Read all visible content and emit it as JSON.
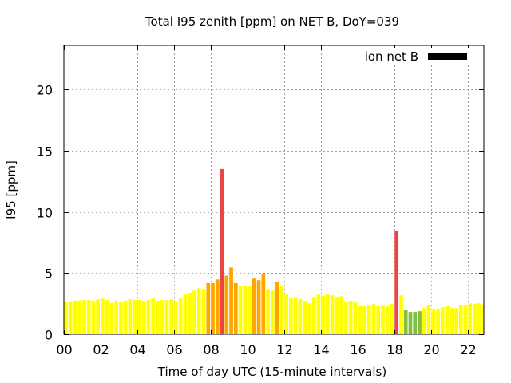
{
  "chart_data": {
    "type": "bar",
    "title": "Total I95 zenith [ppm] on NET B, DoY=039",
    "xlabel": "Time of day UTC (15-minute intervals)",
    "ylabel": "I95 [ppm]",
    "xlim": [
      0,
      22.85
    ],
    "ylim": [
      0,
      23.6
    ],
    "grid": true,
    "bin_hours": 0.25,
    "x_ticks": [
      0,
      2,
      4,
      6,
      8,
      10,
      12,
      14,
      16,
      18,
      20,
      22
    ],
    "x_tick_labels": [
      "00",
      "02",
      "04",
      "06",
      "08",
      "10",
      "12",
      "14",
      "16",
      "18",
      "20",
      "22"
    ],
    "y_ticks": [
      0,
      5,
      10,
      15,
      20
    ],
    "y_tick_labels": [
      "0",
      "5",
      "10",
      "15",
      "20"
    ],
    "legend": {
      "position": "top-right",
      "entries": [
        {
          "label": "ion net B",
          "color": "#000000"
        }
      ]
    },
    "colors": {
      "Y": "#ffff00",
      "O": "#ffa500",
      "R": "#ee4444",
      "G": "#80c040"
    },
    "values": [
      2.63,
      2.7,
      2.75,
      2.75,
      2.8,
      2.8,
      2.73,
      2.86,
      2.92,
      2.8,
      2.55,
      2.73,
      2.66,
      2.73,
      2.86,
      2.8,
      2.81,
      2.73,
      2.8,
      2.92,
      2.73,
      2.8,
      2.8,
      2.86,
      2.66,
      2.92,
      3.25,
      3.38,
      3.57,
      3.77,
      3.7,
      4.18,
      4.18,
      4.48,
      13.5,
      4.8,
      5.45,
      4.18,
      3.96,
      3.96,
      3.9,
      4.55,
      4.42,
      4.96,
      3.7,
      3.57,
      4.28,
      3.96,
      3.25,
      2.99,
      3.05,
      2.88,
      2.73,
      2.53,
      3.05,
      3.25,
      3.12,
      3.31,
      3.18,
      3.05,
      3.12,
      2.66,
      2.73,
      2.6,
      2.34,
      2.34,
      2.4,
      2.47,
      2.34,
      2.4,
      2.34,
      2.47,
      8.44,
      3.18,
      2.01,
      1.82,
      1.82,
      1.88,
      2.14,
      2.4,
      2.08,
      2.08,
      2.21,
      2.34,
      2.14,
      2.14,
      2.4,
      2.4,
      2.53,
      2.47,
      2.53,
      2.4
    ],
    "categories": [
      "Y",
      "Y",
      "Y",
      "Y",
      "Y",
      "Y",
      "Y",
      "Y",
      "Y",
      "Y",
      "Y",
      "Y",
      "Y",
      "Y",
      "Y",
      "Y",
      "Y",
      "Y",
      "Y",
      "Y",
      "Y",
      "Y",
      "Y",
      "Y",
      "Y",
      "Y",
      "Y",
      "Y",
      "Y",
      "Y",
      "Y",
      "O",
      "O",
      "O",
      "R",
      "O",
      "O",
      "O",
      "Y",
      "Y",
      "Y",
      "O",
      "O",
      "O",
      "Y",
      "Y",
      "O",
      "Y",
      "Y",
      "Y",
      "Y",
      "Y",
      "Y",
      "Y",
      "Y",
      "Y",
      "Y",
      "Y",
      "Y",
      "Y",
      "Y",
      "Y",
      "Y",
      "Y",
      "Y",
      "Y",
      "Y",
      "Y",
      "Y",
      "Y",
      "Y",
      "Y",
      "R",
      "Y",
      "G",
      "G",
      "G",
      "G",
      "Y",
      "Y",
      "Y",
      "Y",
      "Y",
      "Y",
      "Y",
      "Y",
      "Y",
      "Y",
      "Y",
      "Y",
      "Y",
      "Y"
    ]
  }
}
